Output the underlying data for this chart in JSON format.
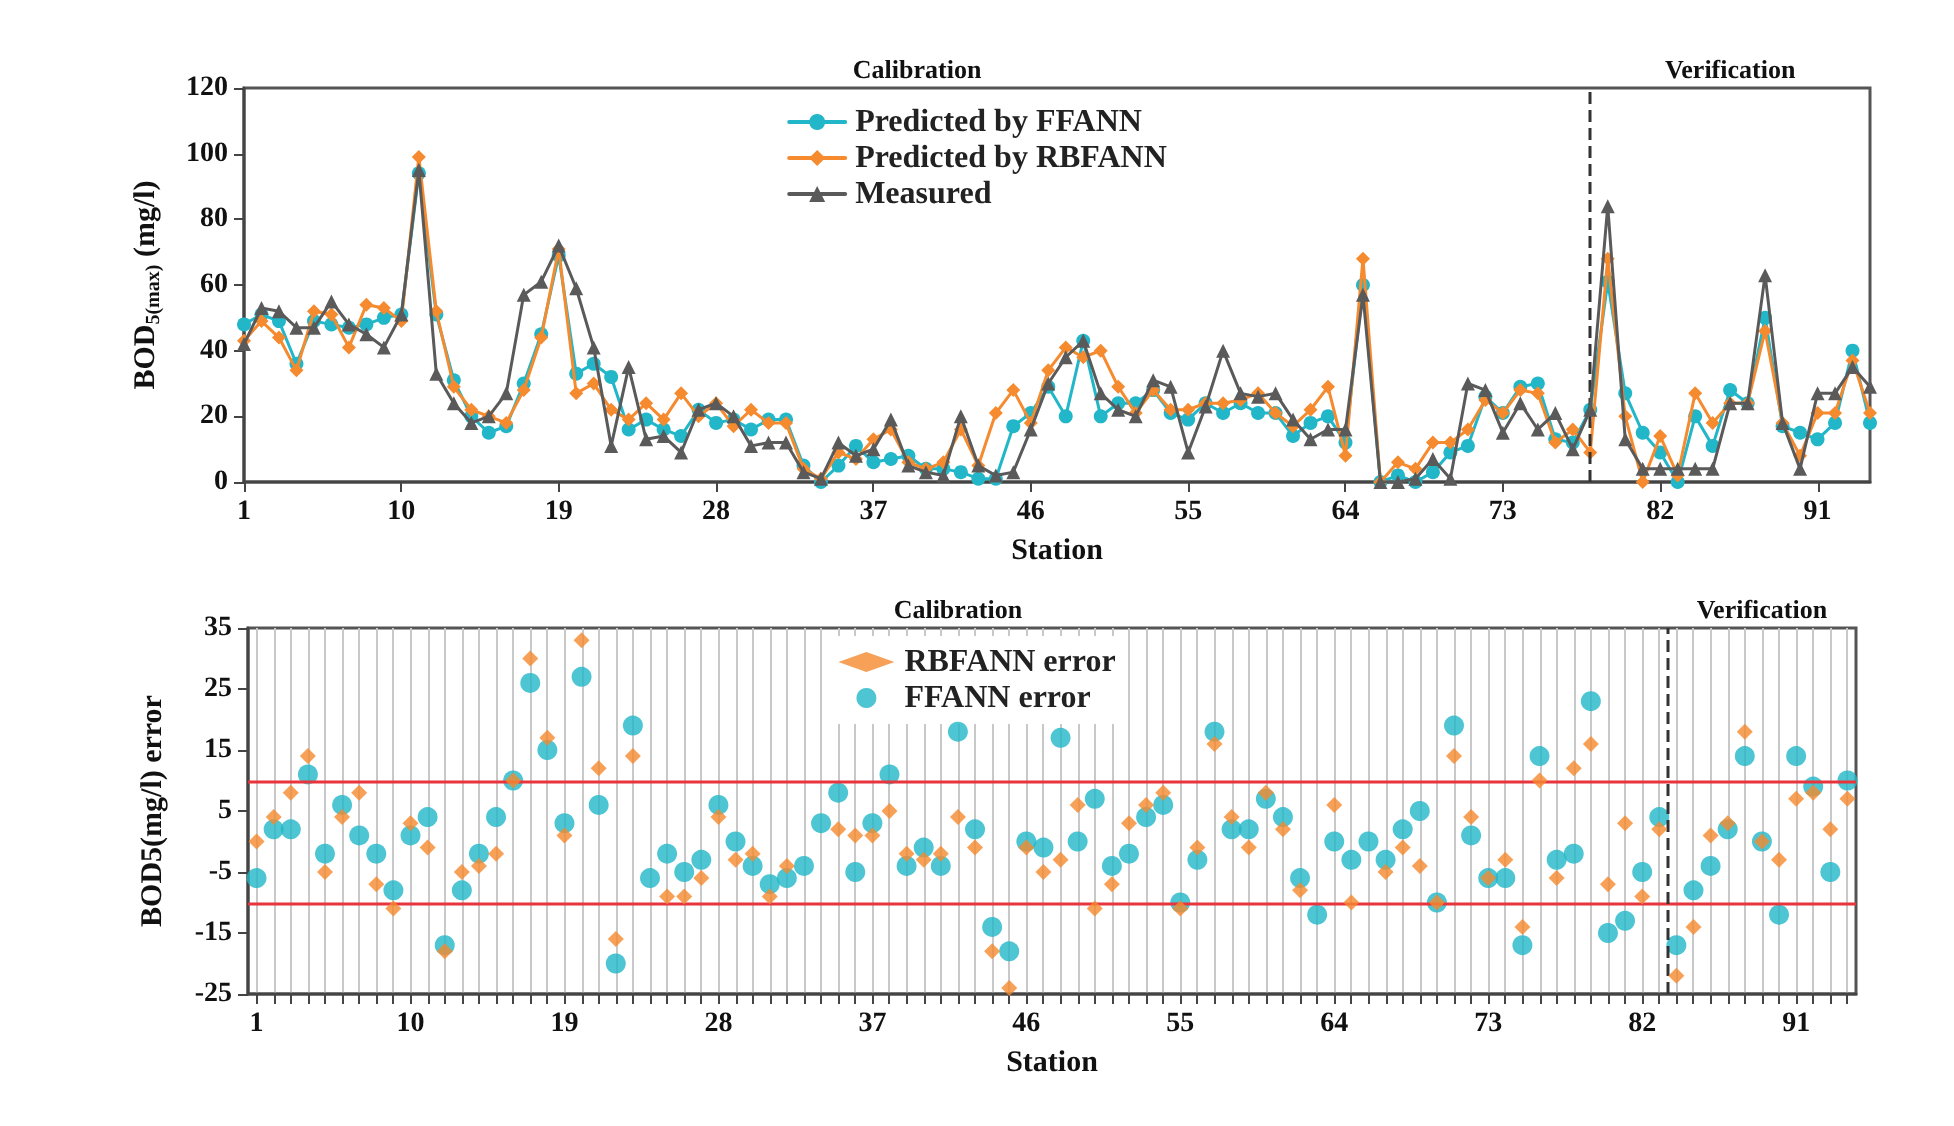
{
  "chart_data": [
    {
      "type": "line",
      "xlabel": "Station",
      "ylabel": "BOD$_{5(max)}$ (mg/l)",
      "annotations": [
        "Calibration",
        "Verification"
      ],
      "x": [
        1,
        2,
        3,
        4,
        5,
        6,
        7,
        8,
        9,
        10,
        11,
        12,
        13,
        14,
        15,
        16,
        17,
        18,
        19,
        20,
        21,
        22,
        23,
        24,
        25,
        26,
        27,
        28,
        29,
        30,
        31,
        32,
        33,
        34,
        35,
        36,
        37,
        38,
        39,
        40,
        41,
        42,
        43,
        44,
        45,
        46,
        47,
        48,
        49,
        50,
        51,
        52,
        53,
        54,
        55,
        56,
        57,
        58,
        59,
        60,
        61,
        62,
        63,
        64,
        65,
        66,
        67,
        68,
        69,
        70,
        71,
        72,
        73,
        74,
        75,
        76,
        77,
        78,
        79,
        80,
        81,
        82,
        83,
        84,
        85,
        86,
        87,
        88,
        89,
        90,
        91,
        92,
        93,
        94
      ],
      "series": [
        {
          "name": "Predicted by FFANN",
          "color": "#21b6c8",
          "marker": "circle",
          "values": [
            48,
            51,
            49,
            36,
            49,
            48,
            47,
            48,
            50,
            51,
            94,
            51,
            31,
            20,
            15,
            17,
            30,
            45,
            69,
            33,
            36,
            32,
            16,
            19,
            16,
            14,
            22,
            18,
            19,
            16,
            19,
            19,
            5,
            0,
            5,
            11,
            6,
            7,
            8,
            4,
            4,
            3,
            1,
            1,
            17,
            21,
            29,
            20,
            43,
            20,
            24,
            24,
            28,
            21,
            19,
            24,
            21,
            24,
            21,
            21,
            14,
            18,
            20,
            12,
            60,
            0,
            2,
            0,
            3,
            9,
            11,
            26,
            21,
            29,
            30,
            13,
            12,
            22,
            61,
            27,
            15,
            9,
            0,
            20,
            11,
            28,
            24,
            50,
            17,
            15,
            13,
            18,
            40,
            18
          ]
        },
        {
          "name": "Predicted by RBFANN",
          "color": "#f58a2e",
          "marker": "diamond",
          "values": [
            43,
            49,
            44,
            34,
            52,
            51,
            41,
            54,
            53,
            49,
            99,
            52,
            29,
            22,
            20,
            18,
            28,
            44,
            71,
            27,
            30,
            22,
            19,
            24,
            19,
            27,
            20,
            24,
            17,
            22,
            18,
            18,
            4,
            1,
            9,
            7,
            13,
            16,
            6,
            4,
            6,
            16,
            5,
            21,
            28,
            18,
            34,
            41,
            38,
            40,
            29,
            21,
            28,
            22,
            22,
            24,
            24,
            25,
            27,
            21,
            17,
            22,
            29,
            8,
            68,
            0,
            6,
            4,
            12,
            12,
            16,
            25,
            21,
            28,
            27,
            12,
            16,
            9,
            68,
            20,
            0,
            14,
            2,
            27,
            18,
            24,
            24,
            46,
            18,
            8,
            21,
            21,
            37,
            21
          ]
        },
        {
          "name": "Measured",
          "color": "#5a5a5a",
          "marker": "triangle",
          "values": [
            42,
            53,
            52,
            47,
            47,
            55,
            48,
            45,
            41,
            51,
            95,
            33,
            24,
            18,
            20,
            27,
            57,
            61,
            72,
            59,
            41,
            11,
            35,
            13,
            14,
            9,
            22,
            24,
            20,
            11,
            12,
            12,
            3,
            1,
            12,
            8,
            10,
            19,
            5,
            3,
            2,
            20,
            5,
            2,
            3,
            16,
            30,
            38,
            43,
            27,
            22,
            20,
            31,
            29,
            9,
            23,
            40,
            27,
            26,
            27,
            19,
            13,
            16,
            16,
            57,
            0,
            0,
            1,
            7,
            1,
            30,
            28,
            15,
            24,
            16,
            21,
            10,
            22,
            84,
            13,
            4,
            4,
            4,
            4,
            4,
            24,
            24,
            63,
            18,
            4,
            27,
            27,
            35,
            29
          ]
        }
      ],
      "xlim": [
        1,
        94
      ],
      "xticks": [
        1,
        10,
        19,
        28,
        37,
        46,
        55,
        64,
        73,
        82,
        91
      ],
      "ylim": [
        0,
        120
      ],
      "yticks": [
        0,
        20,
        40,
        60,
        80,
        100,
        120
      ],
      "ref_lines": [
        {
          "axis": "x",
          "value": 78,
          "color": "#333333",
          "line_style": "dashed"
        }
      ],
      "grid": false,
      "legend": "top",
      "line_style": "solid"
    },
    {
      "type": "scatter",
      "xlabel": "Station",
      "ylabel": "BOD5(mg/l) error",
      "annotations": [
        "Calibration",
        "Verification"
      ],
      "x": [
        1,
        2,
        3,
        4,
        5,
        6,
        7,
        8,
        9,
        10,
        11,
        12,
        13,
        14,
        15,
        16,
        17,
        18,
        19,
        20,
        21,
        22,
        23,
        24,
        25,
        26,
        27,
        28,
        29,
        30,
        31,
        32,
        33,
        34,
        35,
        36,
        37,
        38,
        39,
        40,
        41,
        42,
        43,
        44,
        45,
        46,
        47,
        48,
        49,
        50,
        51,
        52,
        53,
        54,
        55,
        56,
        57,
        58,
        59,
        60,
        61,
        62,
        63,
        64,
        65,
        66,
        67,
        68,
        69,
        70,
        71,
        72,
        73,
        74,
        75,
        76,
        77,
        78,
        79,
        80,
        81,
        82,
        83,
        84,
        85,
        86,
        87,
        88,
        89,
        90,
        91,
        92,
        93,
        94
      ],
      "series": [
        {
          "name": "RBFANN error",
          "color": "#f58a2e",
          "marker": "diamond",
          "values": [
            0,
            4,
            8,
            14,
            -5,
            4,
            8,
            -7,
            -11,
            3,
            -1,
            -18,
            -5,
            -4,
            -2,
            10,
            30,
            17,
            1,
            33,
            12,
            -16,
            14,
            null,
            -9,
            -9,
            -6,
            4,
            -3,
            -2,
            -9,
            -4,
            null,
            null,
            2,
            1,
            1,
            5,
            -2,
            -3,
            -2,
            4,
            -1,
            -18,
            -24,
            -1,
            -5,
            -3,
            6,
            -11,
            -7,
            3,
            6,
            8,
            -11,
            -1,
            16,
            4,
            -1,
            8,
            2,
            -8,
            null,
            6,
            -10,
            null,
            -5,
            -1,
            -4,
            -10,
            14,
            4,
            -6,
            -3,
            -14,
            10,
            -6,
            12,
            16,
            -7,
            3,
            -9,
            2,
            -22,
            -14,
            1,
            3,
            18,
            0,
            -3,
            7,
            8,
            2,
            7
          ]
        },
        {
          "name": "FFANN error",
          "color": "#21b6c8",
          "marker": "circle",
          "values": [
            -6,
            2,
            2,
            11,
            -2,
            6,
            1,
            -2,
            -8,
            1,
            4,
            -17,
            -8,
            -2,
            4,
            10,
            26,
            15,
            3,
            27,
            6,
            -20,
            19,
            -6,
            -2,
            -5,
            -3,
            6,
            0,
            -4,
            -7,
            -6,
            -4,
            3,
            8,
            -5,
            3,
            11,
            -4,
            -1,
            -4,
            18,
            2,
            -14,
            -18,
            0,
            -1,
            17,
            0,
            7,
            -4,
            -2,
            4,
            6,
            -10,
            -3,
            18,
            2,
            2,
            7,
            4,
            -6,
            -12,
            0,
            -3,
            0,
            -3,
            2,
            5,
            -10,
            19,
            1,
            -6,
            -6,
            -17,
            14,
            -3,
            -2,
            23,
            -15,
            -13,
            -5,
            4,
            -17,
            -8,
            -4,
            2,
            14,
            0,
            -12,
            14,
            9,
            -5,
            10
          ]
        }
      ],
      "xlim": [
        0.5,
        94.5
      ],
      "xticks": [
        1,
        {
          "value": 2,
          "label": null
        },
        {
          "value": 3,
          "label": null
        },
        {
          "value": 4,
          "label": null
        },
        {
          "value": 5,
          "label": null
        },
        {
          "value": 6,
          "label": null
        },
        {
          "value": 7,
          "label": null
        },
        {
          "value": 8,
          "label": null
        },
        {
          "value": 9,
          "label": null
        },
        10,
        {
          "value": 11,
          "label": null
        },
        {
          "value": 12,
          "label": null
        },
        {
          "value": 13,
          "label": null
        },
        {
          "value": 14,
          "label": null
        },
        {
          "value": 15,
          "label": null
        },
        {
          "value": 16,
          "label": null
        },
        {
          "value": 17,
          "label": null
        },
        {
          "value": 18,
          "label": null
        },
        19,
        {
          "value": 20,
          "label": null
        },
        {
          "value": 21,
          "label": null
        },
        {
          "value": 22,
          "label": null
        },
        {
          "value": 23,
          "label": null
        },
        {
          "value": 24,
          "label": null
        },
        {
          "value": 25,
          "label": null
        },
        {
          "value": 26,
          "label": null
        },
        {
          "value": 27,
          "label": null
        },
        28,
        {
          "value": 29,
          "label": null
        },
        {
          "value": 30,
          "label": null
        },
        {
          "value": 31,
          "label": null
        },
        {
          "value": 32,
          "label": null
        },
        {
          "value": 33,
          "label": null
        },
        {
          "value": 34,
          "label": null
        },
        {
          "value": 35,
          "label": null
        },
        {
          "value": 36,
          "label": null
        },
        37,
        {
          "value": 38,
          "label": null
        },
        {
          "value": 39,
          "label": null
        },
        {
          "value": 40,
          "label": null
        },
        {
          "value": 41,
          "label": null
        },
        {
          "value": 42,
          "label": null
        },
        {
          "value": 43,
          "label": null
        },
        {
          "value": 44,
          "label": null
        },
        {
          "value": 45,
          "label": null
        },
        46,
        {
          "value": 47,
          "label": null
        },
        {
          "value": 48,
          "label": null
        },
        {
          "value": 49,
          "label": null
        },
        {
          "value": 50,
          "label": null
        },
        {
          "value": 51,
          "label": null
        },
        {
          "value": 52,
          "label": null
        },
        {
          "value": 53,
          "label": null
        },
        {
          "value": 54,
          "label": null
        },
        55,
        {
          "value": 56,
          "label": null
        },
        {
          "value": 57,
          "label": null
        },
        {
          "value": 58,
          "label": null
        },
        {
          "value": 59,
          "label": null
        },
        {
          "value": 60,
          "label": null
        },
        {
          "value": 61,
          "label": null
        },
        {
          "value": 62,
          "label": null
        },
        {
          "value": 63,
          "label": null
        },
        64,
        {
          "value": 65,
          "label": null
        },
        {
          "value": 66,
          "label": null
        },
        {
          "value": 67,
          "label": null
        },
        {
          "value": 68,
          "label": null
        },
        {
          "value": 69,
          "label": null
        },
        {
          "value": 70,
          "label": null
        },
        {
          "value": 71,
          "label": null
        },
        {
          "value": 72,
          "label": null
        },
        73,
        {
          "value": 74,
          "label": null
        },
        {
          "value": 75,
          "label": null
        },
        {
          "value": 76,
          "label": null
        },
        {
          "value": 77,
          "label": null
        },
        {
          "value": 78,
          "label": null
        },
        {
          "value": 79,
          "label": null
        },
        {
          "value": 80,
          "label": null
        },
        {
          "value": 81,
          "label": null
        },
        82,
        {
          "value": 83,
          "label": null
        },
        {
          "value": 84,
          "label": null
        },
        {
          "value": 85,
          "label": null
        },
        {
          "value": 86,
          "label": null
        },
        {
          "value": 87,
          "label": null
        },
        {
          "value": 88,
          "label": null
        },
        {
          "value": 89,
          "label": null
        },
        {
          "value": 90,
          "label": null
        },
        91,
        {
          "value": 92,
          "label": null
        },
        {
          "value": 93,
          "label": null
        },
        {
          "value": 94,
          "label": null
        }
      ],
      "ylim": [
        -25,
        35
      ],
      "yticks": [
        -25,
        -15,
        -5,
        5,
        15,
        25,
        35
      ],
      "ref_lines": [
        {
          "axis": "y",
          "value": 10,
          "color": "#e8343c",
          "line_style": "solid"
        },
        {
          "axis": "y",
          "value": -10,
          "color": "#e8343c",
          "line_style": "solid"
        },
        {
          "axis": "x",
          "value": 83.5,
          "color": "#333333",
          "line_style": "dashed"
        }
      ],
      "grid": "x",
      "legend": "top"
    }
  ]
}
